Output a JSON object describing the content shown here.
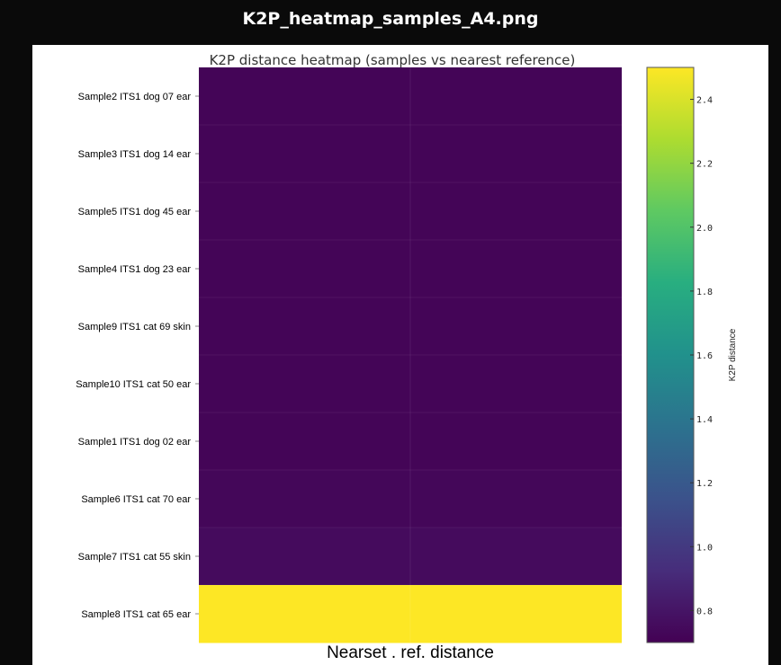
{
  "window": {
    "title": "K2P_heatmap_samples_A4.png"
  },
  "chart_data": {
    "type": "heatmap",
    "title": "K2P distance heatmap (samples vs nearest reference)",
    "xlabel": "Nearset . ref. distance",
    "ylabel": "",
    "rows": [
      "Sample2 ITS1 dog 07 ear",
      "Sample3 ITS1 dog 14 ear",
      "Sample5 ITS1 dog 45 ear",
      "Sample4 ITS1 dog 23 ear",
      "Sample9 ITS1 cat 69 skin",
      "Sample10 ITS1 cat 50 ear",
      "Sample1 ITS1 dog 02 ear",
      "Sample6 ITS1 cat 70 ear",
      "Sample7 ITS1 cat 55 skin",
      "Sample8  ITS1 cat 65 ear"
    ],
    "values": [
      0.72,
      0.72,
      0.72,
      0.72,
      0.72,
      0.72,
      0.72,
      0.73,
      0.75,
      2.5
    ],
    "colorbar": {
      "label": "K2P distance",
      "vmin": 0.7,
      "vmax": 2.5,
      "ticks": [
        "2.4",
        "2.2",
        "2.0",
        "1.8",
        "1.6",
        "1.4",
        "1.2",
        "1.0",
        "0.8"
      ],
      "colormap": "viridis"
    }
  }
}
